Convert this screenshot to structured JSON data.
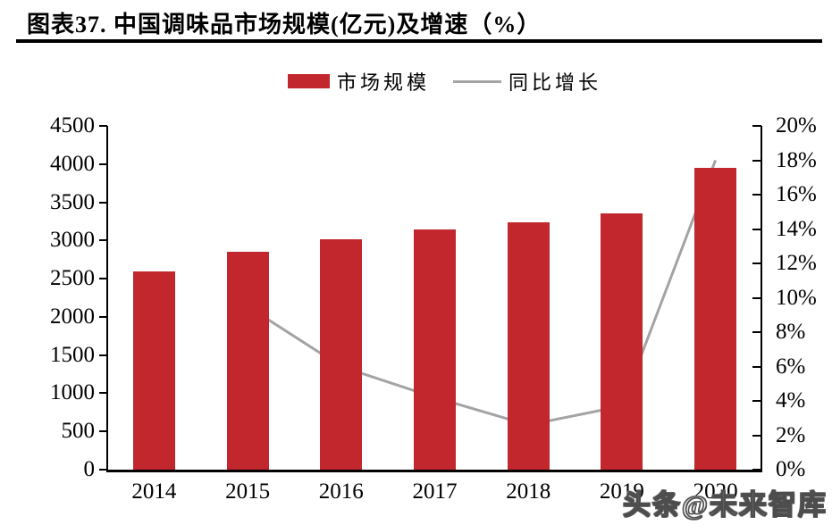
{
  "title": {
    "text": "图表37.  中国调味品市场规模(亿元)及增速（%）"
  },
  "legend": {
    "items": [
      {
        "label": "市场规模",
        "marker": "bar",
        "color": "#C1272D"
      },
      {
        "label": "同比增长",
        "marker": "line",
        "color": "#A3A3A3"
      }
    ]
  },
  "watermark": {
    "text": "头条@未来智库"
  },
  "colors": {
    "bar": "#C1272D",
    "line": "#A3A3A3",
    "axis": "#000000",
    "background": "#FFFFFF"
  },
  "chart_data": {
    "type": "bar",
    "subtype": "bar-plus-line-dual-axis",
    "title": "图表37. 中国调味品市场规模(亿元)及增速（%）",
    "categories": [
      "2014",
      "2015",
      "2016",
      "2017",
      "2018",
      "2019",
      "2020"
    ],
    "series": [
      {
        "name": "市场规模",
        "type": "bar",
        "axis": "left",
        "color": "#C1272D",
        "values": [
          2600,
          2850,
          3020,
          3150,
          3240,
          3350,
          3950
        ]
      },
      {
        "name": "同比增长",
        "type": "line",
        "axis": "right",
        "color": "#A3A3A3",
        "values": [
          null,
          9.5,
          6.0,
          4.2,
          2.6,
          3.7,
          18.0
        ]
      }
    ],
    "left_axis": {
      "min": 0,
      "max": 4500,
      "step": 500,
      "ticks": [
        "4500",
        "4000",
        "3500",
        "3000",
        "2500",
        "2000",
        "1500",
        "1000",
        "500",
        "0"
      ]
    },
    "right_axis": {
      "min": 0,
      "max": 20,
      "step": 2,
      "ticks": [
        "20%",
        "18%",
        "16%",
        "14%",
        "12%",
        "10%",
        "8%",
        "6%",
        "4%",
        "2%",
        "0%"
      ]
    },
    "grid": false,
    "legend_position": "top-center"
  }
}
